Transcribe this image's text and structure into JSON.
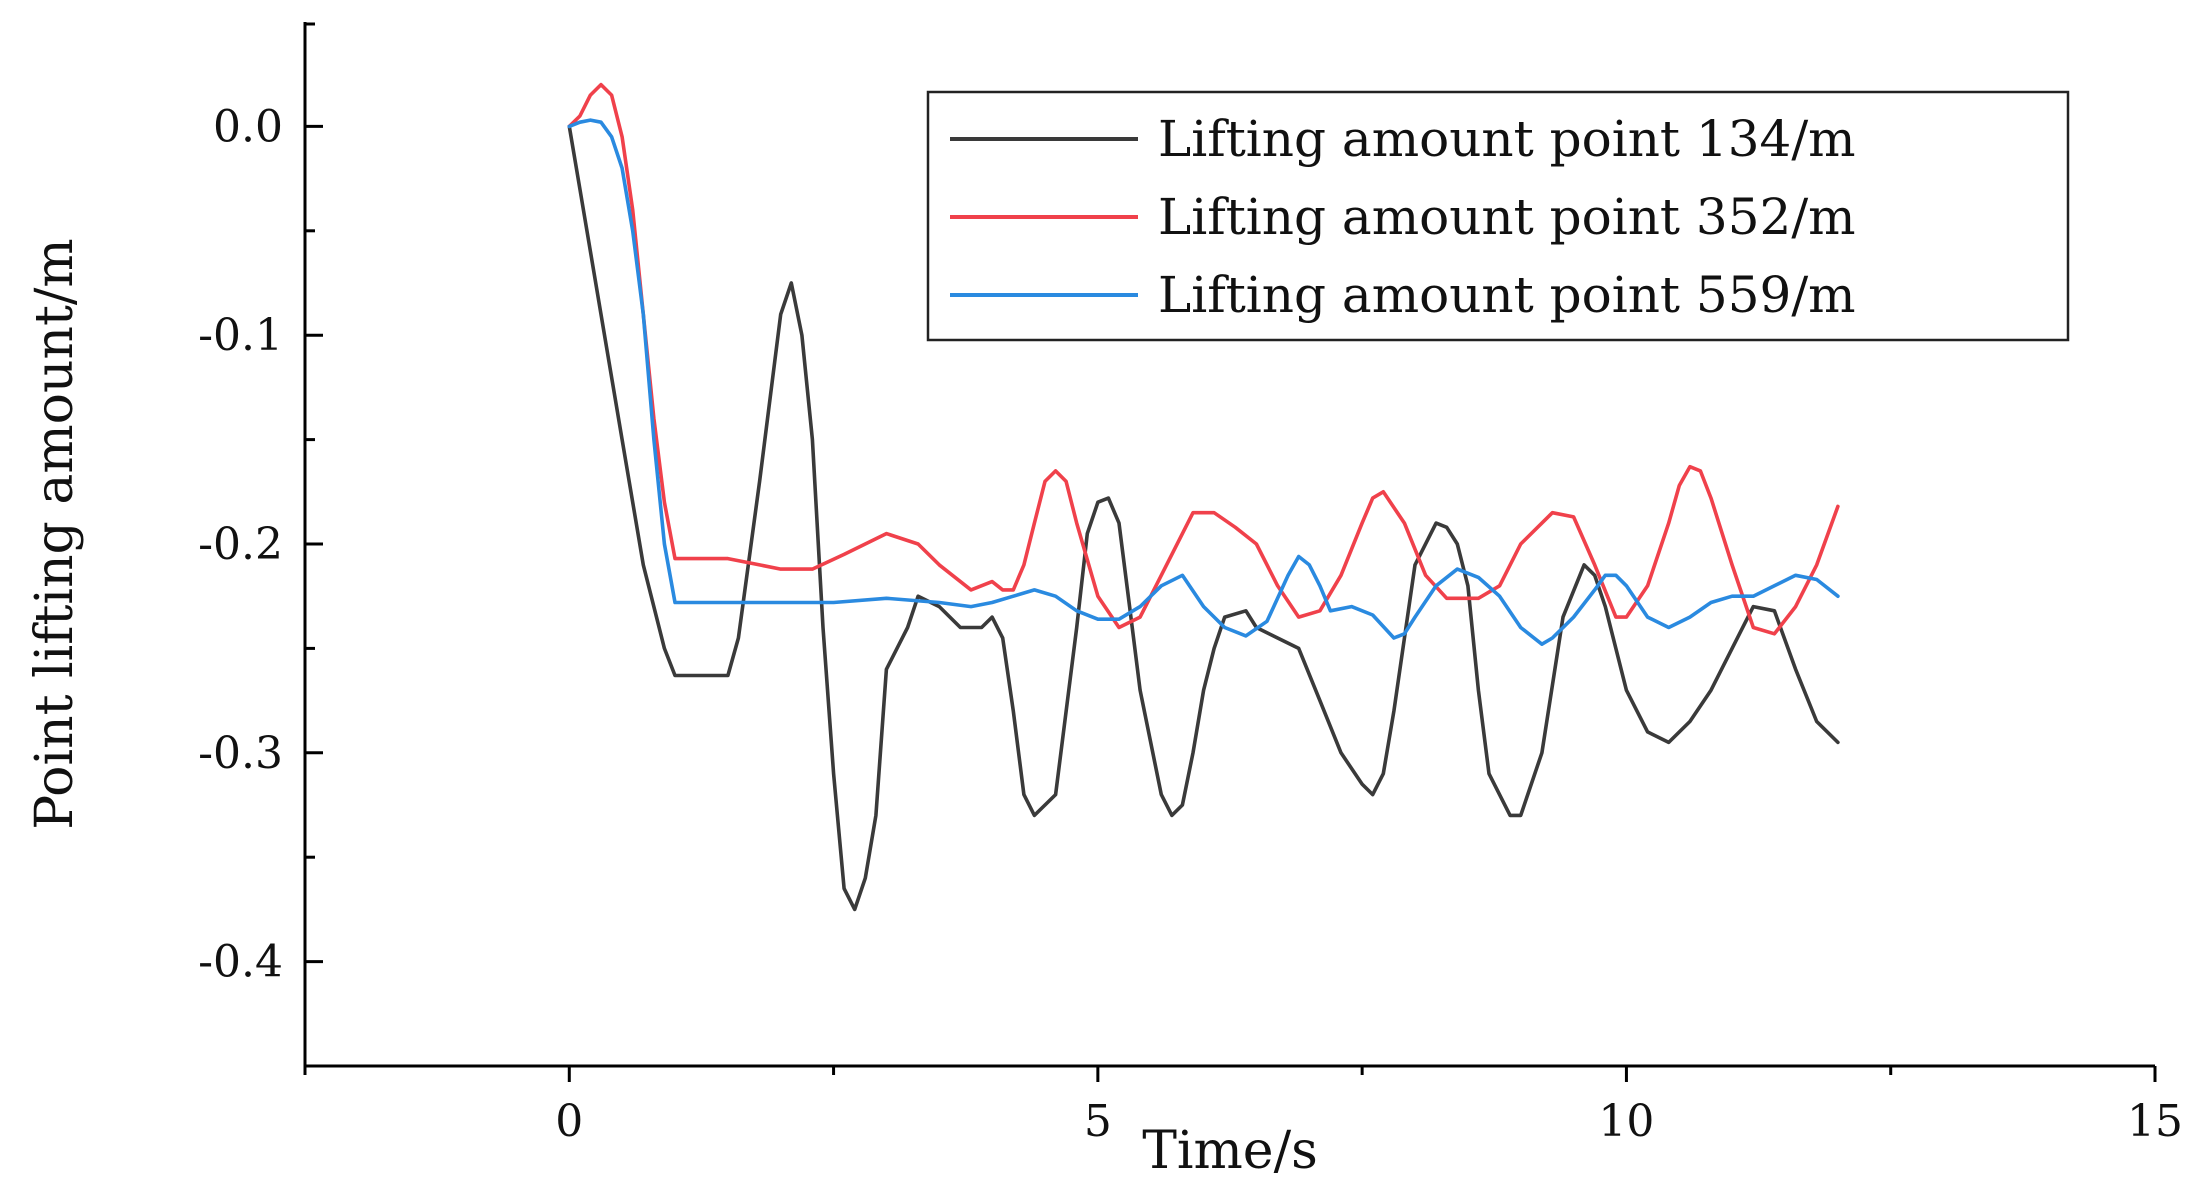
{
  "chart_data": {
    "type": "line",
    "title": "",
    "xlabel": "Time/s",
    "ylabel": "Point lifting amount/m",
    "xlim": [
      -2.5,
      15
    ],
    "ylim": [
      -0.45,
      0.05
    ],
    "xticks": [
      0,
      5,
      10,
      15
    ],
    "xtick_labels": [
      "0",
      "5",
      "10",
      "15"
    ],
    "yticks": [
      0.0,
      -0.1,
      -0.2,
      -0.3,
      -0.4
    ],
    "ytick_labels": [
      "0.0",
      "-0.1",
      "-0.2",
      "-0.3",
      "-0.4"
    ],
    "grid": false,
    "legend_position": "top-right",
    "series": [
      {
        "name": "Lifting amount point 134/m",
        "color": "#3a3a3a",
        "x": [
          0,
          0.1,
          0.3,
          0.5,
          0.7,
          0.9,
          1.0,
          1.2,
          1.5,
          1.6,
          1.8,
          2.0,
          2.1,
          2.2,
          2.3,
          2.4,
          2.5,
          2.6,
          2.7,
          2.8,
          2.9,
          3.0,
          3.2,
          3.3,
          3.5,
          3.7,
          3.9,
          4.0,
          4.1,
          4.2,
          4.3,
          4.4,
          4.6,
          4.8,
          4.9,
          5.0,
          5.1,
          5.2,
          5.3,
          5.4,
          5.6,
          5.7,
          5.8,
          5.9,
          6.0,
          6.1,
          6.2,
          6.4,
          6.5,
          6.7,
          6.9,
          7.1,
          7.3,
          7.5,
          7.6,
          7.7,
          7.8,
          8.0,
          8.2,
          8.3,
          8.4,
          8.5,
          8.6,
          8.7,
          8.9,
          9.0,
          9.2,
          9.4,
          9.6,
          9.7,
          9.8,
          10.0,
          10.2,
          10.4,
          10.6,
          10.8,
          11.0,
          11.2,
          11.4,
          11.6,
          11.8,
          12.0
        ],
        "values": [
          0,
          -0.03,
          -0.09,
          -0.15,
          -0.21,
          -0.25,
          -0.263,
          -0.263,
          -0.263,
          -0.245,
          -0.17,
          -0.09,
          -0.075,
          -0.1,
          -0.15,
          -0.24,
          -0.31,
          -0.365,
          -0.375,
          -0.36,
          -0.33,
          -0.26,
          -0.24,
          -0.225,
          -0.23,
          -0.24,
          -0.24,
          -0.235,
          -0.245,
          -0.28,
          -0.32,
          -0.33,
          -0.32,
          -0.24,
          -0.195,
          -0.18,
          -0.178,
          -0.19,
          -0.23,
          -0.27,
          -0.32,
          -0.33,
          -0.325,
          -0.3,
          -0.27,
          -0.25,
          -0.235,
          -0.232,
          -0.24,
          -0.245,
          -0.25,
          -0.275,
          -0.3,
          -0.315,
          -0.32,
          -0.31,
          -0.28,
          -0.21,
          -0.19,
          -0.192,
          -0.2,
          -0.22,
          -0.27,
          -0.31,
          -0.33,
          -0.33,
          -0.3,
          -0.235,
          -0.21,
          -0.215,
          -0.23,
          -0.27,
          -0.29,
          -0.295,
          -0.285,
          -0.27,
          -0.25,
          -0.23,
          -0.232,
          -0.26,
          -0.285,
          -0.295
        ]
      },
      {
        "name": "Lifting amount point 352/m",
        "color": "#f0414b",
        "x": [
          0,
          0.1,
          0.2,
          0.3,
          0.4,
          0.5,
          0.6,
          0.7,
          0.8,
          0.9,
          1.0,
          1.2,
          1.5,
          1.8,
          2.0,
          2.3,
          2.6,
          3.0,
          3.3,
          3.5,
          3.8,
          4.0,
          4.1,
          4.2,
          4.3,
          4.4,
          4.5,
          4.6,
          4.7,
          4.8,
          5.0,
          5.2,
          5.4,
          5.6,
          5.9,
          6.1,
          6.3,
          6.5,
          6.7,
          6.9,
          7.1,
          7.3,
          7.5,
          7.6,
          7.7,
          7.9,
          8.1,
          8.3,
          8.6,
          8.8,
          9.0,
          9.3,
          9.5,
          9.7,
          9.9,
          10.0,
          10.2,
          10.4,
          10.5,
          10.6,
          10.7,
          10.8,
          11.0,
          11.2,
          11.4,
          11.6,
          11.8,
          12.0
        ],
        "values": [
          0,
          0.005,
          0.015,
          0.02,
          0.015,
          -0.005,
          -0.04,
          -0.09,
          -0.14,
          -0.18,
          -0.207,
          -0.207,
          -0.207,
          -0.21,
          -0.212,
          -0.212,
          -0.205,
          -0.195,
          -0.2,
          -0.21,
          -0.222,
          -0.218,
          -0.222,
          -0.222,
          -0.21,
          -0.19,
          -0.17,
          -0.165,
          -0.17,
          -0.19,
          -0.225,
          -0.24,
          -0.235,
          -0.215,
          -0.185,
          -0.185,
          -0.192,
          -0.2,
          -0.22,
          -0.235,
          -0.232,
          -0.215,
          -0.19,
          -0.178,
          -0.175,
          -0.19,
          -0.215,
          -0.226,
          -0.226,
          -0.22,
          -0.2,
          -0.185,
          -0.187,
          -0.21,
          -0.235,
          -0.235,
          -0.22,
          -0.19,
          -0.172,
          -0.163,
          -0.165,
          -0.178,
          -0.21,
          -0.24,
          -0.243,
          -0.23,
          -0.21,
          -0.182
        ]
      },
      {
        "name": "Lifting amount point 559/m",
        "color": "#2a8ae0",
        "x": [
          0,
          0.1,
          0.2,
          0.3,
          0.4,
          0.5,
          0.6,
          0.7,
          0.8,
          0.9,
          1.0,
          1.5,
          2.0,
          2.5,
          3.0,
          3.5,
          3.8,
          4.0,
          4.2,
          4.4,
          4.6,
          4.8,
          5.0,
          5.2,
          5.4,
          5.6,
          5.8,
          6.0,
          6.2,
          6.4,
          6.6,
          6.8,
          6.9,
          7.0,
          7.1,
          7.2,
          7.4,
          7.6,
          7.8,
          7.9,
          8.0,
          8.2,
          8.4,
          8.6,
          8.8,
          9.0,
          9.2,
          9.3,
          9.5,
          9.7,
          9.8,
          9.9,
          10.0,
          10.2,
          10.4,
          10.6,
          10.8,
          11.0,
          11.2,
          11.4,
          11.6,
          11.8,
          12.0
        ],
        "values": [
          0,
          0.002,
          0.003,
          0.002,
          -0.005,
          -0.02,
          -0.05,
          -0.09,
          -0.15,
          -0.2,
          -0.228,
          -0.228,
          -0.228,
          -0.228,
          -0.226,
          -0.228,
          -0.23,
          -0.228,
          -0.225,
          -0.222,
          -0.225,
          -0.232,
          -0.236,
          -0.236,
          -0.23,
          -0.22,
          -0.215,
          -0.23,
          -0.24,
          -0.244,
          -0.237,
          -0.215,
          -0.206,
          -0.21,
          -0.22,
          -0.232,
          -0.23,
          -0.234,
          -0.245,
          -0.243,
          -0.235,
          -0.22,
          -0.212,
          -0.216,
          -0.225,
          -0.24,
          -0.248,
          -0.245,
          -0.235,
          -0.222,
          -0.215,
          -0.215,
          -0.22,
          -0.235,
          -0.24,
          -0.235,
          -0.228,
          -0.225,
          -0.225,
          -0.22,
          -0.215,
          -0.217,
          -0.225
        ]
      }
    ]
  }
}
